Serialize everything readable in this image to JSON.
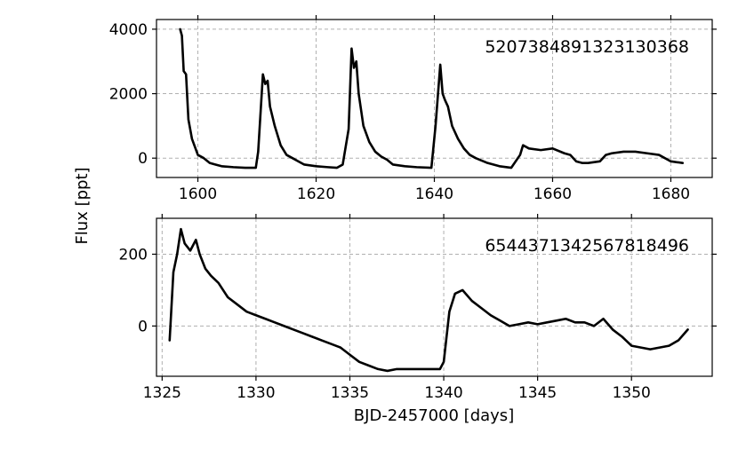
{
  "chart_data": {
    "type": "line",
    "ylabel": "Flux [ppt]",
    "xlabel": "BJD-2457000 [days]",
    "grid": true,
    "panels": [
      {
        "id_label": "5207384891323130368",
        "xlim": [
          1593,
          1687
        ],
        "ylim": [
          -600,
          4300
        ],
        "xticks": [
          1600,
          1620,
          1640,
          1660,
          1680
        ],
        "yticks": [
          0,
          2000,
          4000
        ],
        "series": [
          {
            "x": [
              1597,
              1597.3,
              1597.6,
              1598,
              1598.4,
              1599,
              1600,
              1601,
              1602,
              1603,
              1604,
              1606,
              1608,
              1609.8,
              1610.2,
              1611,
              1611.4,
              1611.8,
              1612.2,
              1613,
              1614,
              1615,
              1616,
              1617,
              1618,
              1620,
              1622,
              1623.5,
              1624.5,
              1625.5,
              1626,
              1626.4,
              1626.8,
              1627.2,
              1628,
              1629,
              1630,
              1631,
              1632,
              1633,
              1635,
              1637,
              1639.5,
              1640.2,
              1641,
              1641.4,
              1641.8,
              1642.3,
              1643,
              1644,
              1645,
              1646,
              1647,
              1649,
              1651,
              1653,
              1654.5,
              1655,
              1656,
              1658,
              1660,
              1662,
              1663,
              1664,
              1665,
              1666,
              1668,
              1669,
              1670,
              1672,
              1674,
              1676,
              1678,
              1680,
              1682
            ],
            "y": [
              4000,
              3800,
              2700,
              2600,
              1200,
              600,
              100,
              0,
              -150,
              -200,
              -250,
              -280,
              -300,
              -300,
              200,
              2600,
              2300,
              2400,
              1600,
              1000,
              400,
              100,
              0,
              -100,
              -200,
              -250,
              -280,
              -300,
              -200,
              900,
              3400,
              2800,
              3000,
              2000,
              1000,
              500,
              200,
              50,
              -50,
              -200,
              -250,
              -280,
              -300,
              1000,
              2900,
              2000,
              1800,
              1600,
              1000,
              600,
              300,
              100,
              0,
              -150,
              -250,
              -300,
              100,
              400,
              300,
              250,
              300,
              150,
              100,
              -100,
              -150,
              -150,
              -100,
              100,
              150,
              200,
              200,
              150,
              100,
              -100,
              -150
            ]
          }
        ]
      },
      {
        "id_label": "6544371342567818496",
        "xlim": [
          1324.7,
          1354.3
        ],
        "ylim": [
          -140,
          300
        ],
        "xticks": [
          1325,
          1330,
          1335,
          1340,
          1345,
          1350
        ],
        "yticks": [
          0,
          200
        ],
        "series": [
          {
            "x": [
              1325.4,
              1325.6,
              1325.8,
              1326.0,
              1326.2,
              1326.5,
              1326.8,
              1327.0,
              1327.3,
              1327.6,
              1328.0,
              1328.5,
              1329.0,
              1329.5,
              1330.0,
              1330.5,
              1331.0,
              1331.5,
              1332.0,
              1332.5,
              1333.0,
              1333.5,
              1334.0,
              1334.5,
              1335.0,
              1335.5,
              1336.0,
              1336.5,
              1337.0,
              1337.5,
              1338.0,
              1339.8,
              1340.0,
              1340.3,
              1340.6,
              1341.0,
              1341.5,
              1342.0,
              1342.5,
              1343.0,
              1343.5,
              1344.0,
              1344.5,
              1345.0,
              1345.5,
              1346.0,
              1346.5,
              1347.0,
              1347.5,
              1348.0,
              1348.5,
              1349.0,
              1349.5,
              1350.0,
              1350.5,
              1351.0,
              1351.5,
              1352.0,
              1352.5,
              1353.0
            ],
            "y": [
              -40,
              150,
              200,
              270,
              230,
              210,
              240,
              200,
              160,
              140,
              120,
              80,
              60,
              40,
              30,
              20,
              10,
              0,
              -10,
              -20,
              -30,
              -40,
              -50,
              -60,
              -80,
              -100,
              -110,
              -120,
              -125,
              -120,
              -120,
              -120,
              -100,
              40,
              90,
              100,
              70,
              50,
              30,
              15,
              0,
              5,
              10,
              5,
              10,
              15,
              20,
              10,
              10,
              0,
              20,
              -10,
              -30,
              -55,
              -60,
              -65,
              -60,
              -55,
              -40,
              -10
            ]
          }
        ]
      }
    ]
  }
}
